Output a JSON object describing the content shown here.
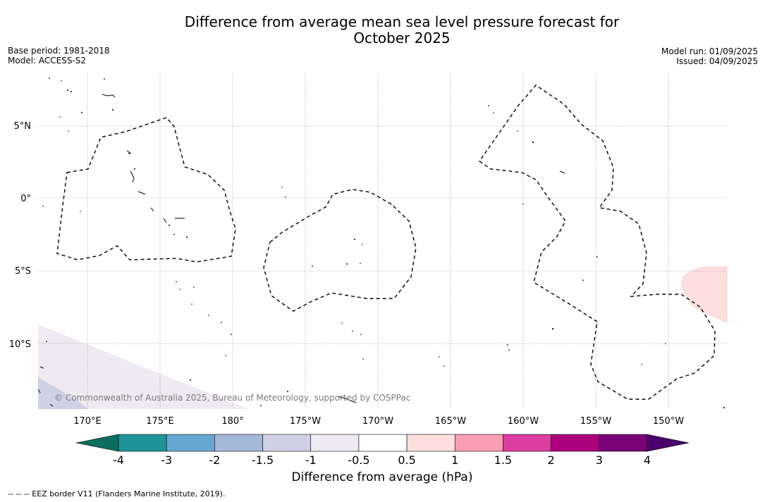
{
  "header": {
    "title_line1": "Difference from average mean sea level pressure forecast for",
    "title_line2": "October 2025",
    "base_period": "Base period: 1981-2018",
    "model": "Model: ACCESS-S2",
    "model_run": "Model run: 01/09/2025",
    "issued": "Issued: 04/09/2025"
  },
  "map": {
    "lat_labels": [
      "5°N",
      "0°",
      "5°S",
      "10°S"
    ],
    "lon_labels": [
      "170°E",
      "175°E",
      "180°",
      "175°W",
      "170°W",
      "165°W",
      "160°W",
      "155°W",
      "150°W"
    ],
    "copyright": "© Commonwealth of Australia 2025, Bureau of Meteorology, supported by COSPPac",
    "anomaly_colors": {
      "positive_patch": "#fde0dd",
      "negative_patch_light": "#efe9f2",
      "negative_patch": "#cfd0e5"
    }
  },
  "colorbar": {
    "title": "Difference from average (hPa)",
    "labels": [
      "-4",
      "-3",
      "-2",
      "-1.5",
      "-1",
      "-0.5",
      "0.5",
      "1",
      "1.5",
      "2",
      "3",
      "4"
    ],
    "colors": [
      "#1f9499",
      "#65a8d2",
      "#a5b8d9",
      "#cfd0e5",
      "#efe9f2",
      "#ffffff",
      "#fde0dd",
      "#f89fb4",
      "#dc3da0",
      "#ad017e",
      "#7a0177"
    ],
    "extend_low_color": "#0b6e5f",
    "extend_high_color": "#49006a"
  },
  "footer": {
    "legend_text": "--  --  -- EEZ border V11 (Flanders Marine Institute, 2019)."
  }
}
